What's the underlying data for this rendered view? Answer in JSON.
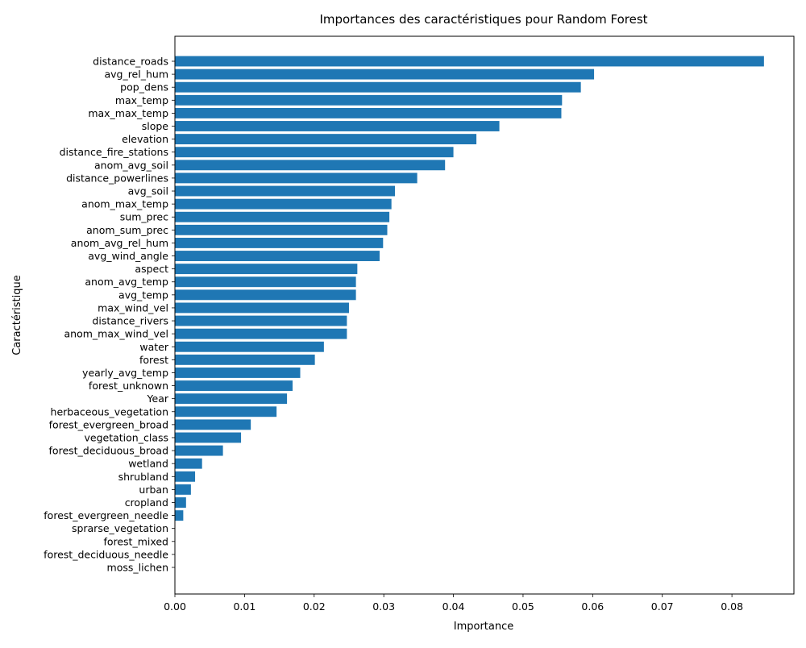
{
  "chart_data": {
    "type": "bar",
    "orientation": "horizontal",
    "title": "Importances des caractéristiques pour Random Forest",
    "xlabel": "Importance",
    "ylabel": "Caractéristique",
    "xlim": [
      0,
      0.0889
    ],
    "grid": false,
    "bar_color": "#1f77b4",
    "xticks": [
      "0.00",
      "0.01",
      "0.02",
      "0.03",
      "0.04",
      "0.05",
      "0.06",
      "0.07",
      "0.08"
    ],
    "xtick_values": [
      0,
      0.01,
      0.02,
      0.03,
      0.04,
      0.05,
      0.06,
      0.07,
      0.08
    ],
    "categories": [
      "distance_roads",
      "avg_rel_hum",
      "pop_dens",
      "max_temp",
      "max_max_temp",
      "slope",
      "elevation",
      "distance_fire_stations",
      "anom_avg_soil",
      "distance_powerlines",
      "avg_soil",
      "anom_max_temp",
      "sum_prec",
      "anom_sum_prec",
      "anom_avg_rel_hum",
      "avg_wind_angle",
      "aspect",
      "anom_avg_temp",
      "avg_temp",
      "max_wind_vel",
      "distance_rivers",
      "anom_max_wind_vel",
      "water",
      "forest",
      "yearly_avg_temp",
      "forest_unknown",
      "Year",
      "herbaceous_vegetation",
      "forest_evergreen_broad",
      "vegetation_class",
      "forest_deciduous_broad",
      "wetland",
      "shrubland",
      "urban",
      "cropland",
      "forest_evergreen_needle",
      "sprarse_vegetation",
      "forest_mixed",
      "forest_deciduous_needle",
      "moss_lichen"
    ],
    "values": [
      0.0846,
      0.0602,
      0.0583,
      0.0556,
      0.0555,
      0.0466,
      0.0433,
      0.04,
      0.0388,
      0.0348,
      0.0316,
      0.0311,
      0.0308,
      0.0305,
      0.0299,
      0.0294,
      0.0262,
      0.026,
      0.026,
      0.025,
      0.0247,
      0.0247,
      0.0214,
      0.0201,
      0.018,
      0.0169,
      0.0161,
      0.0146,
      0.0109,
      0.0095,
      0.0069,
      0.0039,
      0.0029,
      0.0023,
      0.0016,
      0.0012,
      0.0,
      0.0,
      0.0,
      0.0
    ]
  }
}
